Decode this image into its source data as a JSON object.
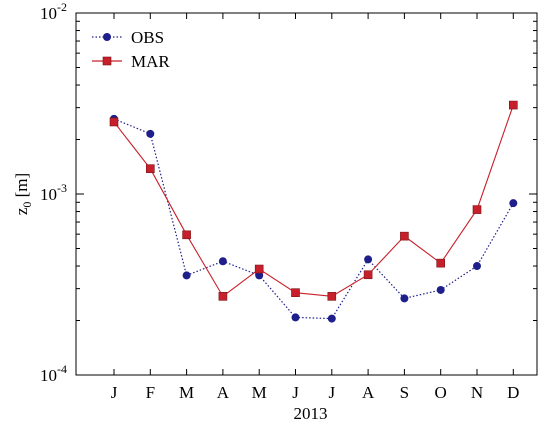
{
  "chart_data": {
    "type": "line",
    "x_categories": [
      "J",
      "F",
      "M",
      "A",
      "M",
      "J",
      "J",
      "A",
      "S",
      "O",
      "N",
      "D"
    ],
    "xlabel": "2013",
    "ylabel": {
      "base": "z",
      "subscript": "0",
      "unit": "[m]"
    },
    "y_scale": "log",
    "ylim": [
      0.0001,
      0.01
    ],
    "y_ticks": [
      {
        "value": 0.01,
        "mantissa": "10",
        "exponent": "-2"
      },
      {
        "value": 0.001,
        "mantissa": "10",
        "exponent": "-3"
      },
      {
        "value": 0.0001,
        "mantissa": "10",
        "exponent": "-4"
      }
    ],
    "grid": false,
    "legend_position": "top-left",
    "series": [
      {
        "name": "OBS",
        "color": "#1f1f8c",
        "line_style": "dotted",
        "marker": "circle",
        "values": [
          0.0026,
          0.00215,
          0.000355,
          0.000425,
          0.000355,
          0.000208,
          0.000205,
          0.000435,
          0.000265,
          0.000295,
          0.0004,
          0.00089
        ]
      },
      {
        "name": "MAR",
        "color": "#c8202a",
        "line_style": "solid",
        "marker": "square",
        "values": [
          0.0025,
          0.00138,
          0.000595,
          0.000272,
          0.000385,
          0.000285,
          0.000272,
          0.000358,
          0.000585,
          0.000415,
          0.00082,
          0.0031
        ]
      }
    ]
  }
}
